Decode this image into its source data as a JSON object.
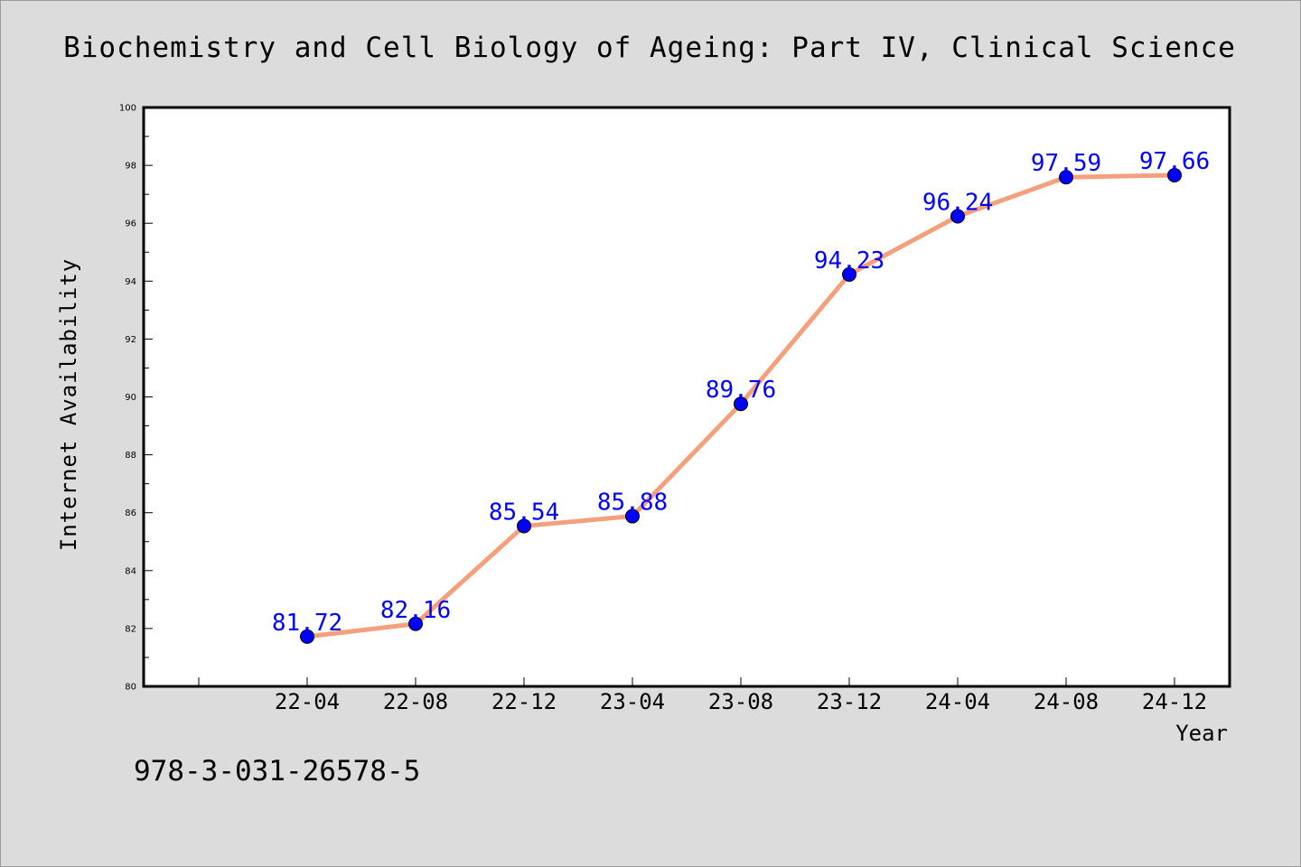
{
  "chart_data": {
    "type": "line",
    "title": "Biochemistry and Cell Biology of Ageing: Part IV, Clinical Science",
    "xlabel": "Year",
    "ylabel": "Internet Availability",
    "categories": [
      "22-04",
      "22-08",
      "22-12",
      "23-04",
      "23-08",
      "23-12",
      "24-04",
      "24-08",
      "24-12"
    ],
    "series": [
      {
        "values": [
          81.72,
          82.16,
          85.54,
          85.88,
          89.76,
          94.23,
          96.24,
          97.59,
          97.66
        ]
      }
    ],
    "data_labels": [
      "81.72",
      "82.16",
      "85.54",
      "85.88",
      "89.76",
      "94.23",
      "96.24",
      "97.59",
      "97.66"
    ],
    "ylim": [
      80,
      100
    ],
    "yticks": [
      "80",
      "82",
      "84",
      "86",
      "88",
      "90",
      "92",
      "94",
      "96",
      "98",
      "100"
    ],
    "grid": false,
    "line_color": "#f4a07c",
    "marker_color": "#0000ff",
    "label_color": "#0000ff"
  },
  "footer": {
    "isbn": "978-3-031-26578-5"
  }
}
